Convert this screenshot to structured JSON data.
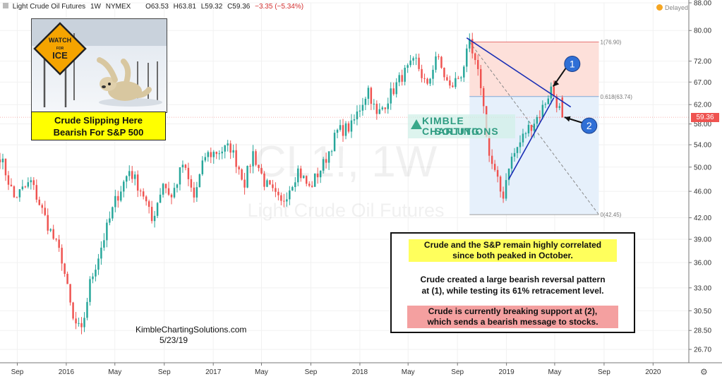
{
  "header": {
    "symbol_title": "Light Crude Oil Futures",
    "interval": "1W",
    "exchange": "NYMEX",
    "open": "O63.53",
    "high": "H63.81",
    "low": "L59.32",
    "close": "C59.36",
    "change": "−3.35 (−5.34%)",
    "delayed_label": "Delayed"
  },
  "watermark": {
    "symbol": "CL1!, 1W",
    "name": "Light Crude Oil Futures"
  },
  "photo": {
    "sign_line1": "WATCH",
    "sign_line2": "FOR",
    "sign_line3": "ICE"
  },
  "caption": {
    "line1": "Crude Slipping Here",
    "line2": "Bearish For S&P 500"
  },
  "info_box": {
    "yellow_line1": "Crude and the S&P remain highly correlated",
    "yellow_line2": "since both peaked in October.",
    "mid_line1": "Crude created a large bearish reversal pattern",
    "mid_line2": "at (1), while testing its 61% retracement level.",
    "red_line1": "Crude is currently breaking support at (2),",
    "red_line2": "which sends a bearish message to stocks."
  },
  "credit": {
    "site": "KimbleChartingSolutions.com",
    "date": "5/23/19"
  },
  "logo": {
    "line1": "KIMBLE CHARTING",
    "line2": "SOLUTIONS"
  },
  "price_tag": "59.36",
  "colors": {
    "up": "#26a69a",
    "down": "#ef5350",
    "trendline": "#1a2fb5",
    "fib_top_zone": "#fde0da",
    "fib_bottom_zone": "#e6f0fb"
  },
  "chart_data": {
    "type": "candlestick",
    "title": "Light Crude Oil Futures",
    "interval": "1W",
    "ylim": [
      25.5,
      88.0
    ],
    "y_scale": "log",
    "y_ticks": [
      "88.00",
      "80.00",
      "72.00",
      "67.00",
      "62.00",
      "58.00",
      "54.00",
      "50.00",
      "46.00",
      "42.00",
      "39.00",
      "36.00",
      "33.00",
      "30.50",
      "28.50",
      "26.70"
    ],
    "x_ticks": [
      {
        "label": "Sep",
        "date": "2015-09"
      },
      {
        "label": "2016",
        "date": "2016-01"
      },
      {
        "label": "May",
        "date": "2016-05"
      },
      {
        "label": "Sep",
        "date": "2016-09"
      },
      {
        "label": "2017",
        "date": "2017-01"
      },
      {
        "label": "May",
        "date": "2017-05"
      },
      {
        "label": "Sep",
        "date": "2017-09"
      },
      {
        "label": "2018",
        "date": "2018-01"
      },
      {
        "label": "May",
        "date": "2018-05"
      },
      {
        "label": "Sep",
        "date": "2018-09"
      },
      {
        "label": "2019",
        "date": "2019-01"
      },
      {
        "label": "May",
        "date": "2019-05"
      },
      {
        "label": "Sep",
        "date": "2019-09"
      },
      {
        "label": "2020",
        "date": "2020-01"
      }
    ],
    "x_range": [
      "2015-07-20",
      "2020-03-30"
    ],
    "weekly_close_path": [
      [
        "2015-07-20",
        52.0
      ],
      [
        "2015-08-24",
        45.0
      ],
      [
        "2015-10-05",
        47.5
      ],
      [
        "2015-11-16",
        41.0
      ],
      [
        "2015-12-21",
        36.5
      ],
      [
        "2016-01-18",
        29.5
      ],
      [
        "2016-02-08",
        28.3
      ],
      [
        "2016-02-29",
        33.5
      ],
      [
        "2016-04-11",
        40.5
      ],
      [
        "2016-05-02",
        44.5
      ],
      [
        "2016-06-06",
        49.5
      ],
      [
        "2016-07-11",
        45.5
      ],
      [
        "2016-08-01",
        41.5
      ],
      [
        "2016-08-29",
        47.5
      ],
      [
        "2016-09-19",
        45.0
      ],
      [
        "2016-10-17",
        50.5
      ],
      [
        "2016-11-14",
        45.0
      ],
      [
        "2016-12-12",
        52.0
      ],
      [
        "2017-02-13",
        53.5
      ],
      [
        "2017-03-20",
        47.5
      ],
      [
        "2017-04-10",
        52.5
      ],
      [
        "2017-05-08",
        47.5
      ],
      [
        "2017-06-19",
        44.0
      ],
      [
        "2017-07-31",
        49.5
      ],
      [
        "2017-08-28",
        46.5
      ],
      [
        "2017-10-02",
        50.5
      ],
      [
        "2017-11-06",
        56.5
      ],
      [
        "2017-12-11",
        57.5
      ],
      [
        "2018-01-22",
        65.5
      ],
      [
        "2018-02-12",
        59.5
      ],
      [
        "2018-04-16",
        68.5
      ],
      [
        "2018-05-21",
        72.0
      ],
      [
        "2018-06-18",
        65.5
      ],
      [
        "2018-07-09",
        73.5
      ],
      [
        "2018-08-13",
        65.5
      ],
      [
        "2018-09-10",
        69.0
      ],
      [
        "2018-10-01",
        76.0
      ],
      [
        "2018-10-29",
        66.5
      ],
      [
        "2018-11-19",
        52.0
      ],
      [
        "2018-12-17",
        46.0
      ],
      [
        "2018-12-24",
        45.5
      ],
      [
        "2019-01-07",
        50.5
      ],
      [
        "2019-02-18",
        56.5
      ],
      [
        "2019-03-25",
        60.0
      ],
      [
        "2019-04-22",
        65.5
      ],
      [
        "2019-05-06",
        62.5
      ],
      [
        "2019-05-20",
        59.36
      ]
    ],
    "fib_levels": [
      {
        "label": "1(76.90)",
        "value": 76.9
      },
      {
        "label": "0.618(63.74)",
        "value": 63.74
      },
      {
        "label": "0(42.45)",
        "value": 42.45
      }
    ],
    "fib_date_range": [
      "2018-10-01",
      "2019-08-19"
    ],
    "trendlines": [
      {
        "from": [
          "2018-09-24",
          78.0
        ],
        "to": [
          "2019-06-10",
          61.5
        ]
      },
      {
        "from": [
          "2019-01-07",
          48.0
        ],
        "to": [
          "2019-04-29",
          63.5
        ]
      }
    ],
    "fib_diagonal": {
      "from": [
        "2018-10-01",
        76.9
      ],
      "to": [
        "2019-08-19",
        42.45
      ]
    },
    "annotations": [
      {
        "label": "1",
        "date": "2019-04-22",
        "value": 66.0
      },
      {
        "label": "2",
        "date": "2019-05-20",
        "value": 59.36
      }
    ],
    "last_price": 59.36
  }
}
